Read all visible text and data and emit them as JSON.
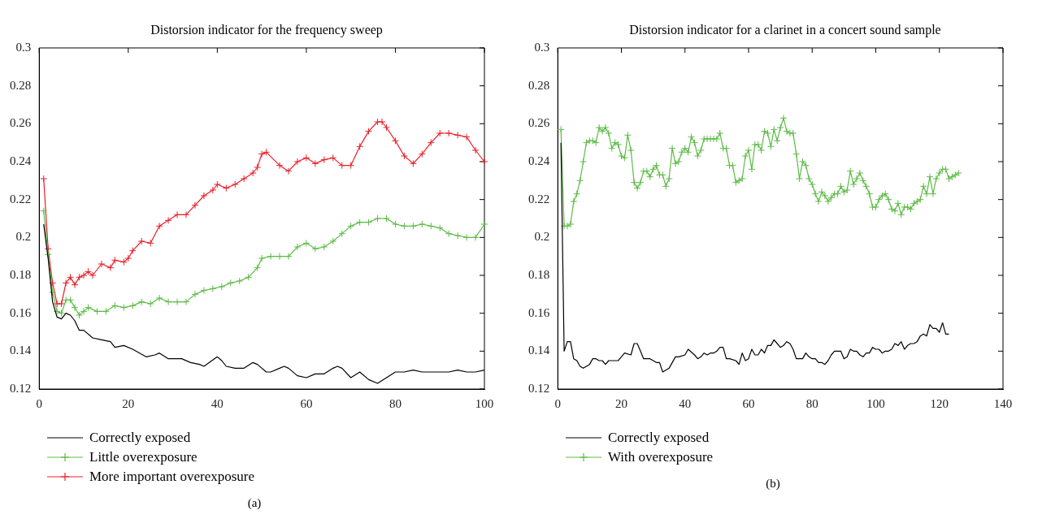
{
  "chart_data": [
    {
      "type": "line",
      "title": "Distorsion indicator for the frequency sweep",
      "xlim": [
        0,
        100
      ],
      "ylim": [
        0.12,
        0.3
      ],
      "xticks": [
        0,
        20,
        40,
        60,
        80,
        100
      ],
      "yticks": [
        0.12,
        0.14,
        0.16,
        0.18,
        0.2,
        0.22,
        0.24,
        0.26,
        0.28,
        0.3
      ],
      "legend": "bottom",
      "annotations": [
        "(a)"
      ],
      "series": [
        {
          "name": "Correctly exposed",
          "color": "#000000",
          "marker": "none",
          "x": [
            1,
            2,
            3,
            4,
            5,
            6,
            7,
            8,
            9,
            10,
            12,
            14,
            16,
            17,
            19,
            21,
            24,
            26,
            27,
            29,
            32,
            34,
            36,
            37,
            40,
            41,
            42,
            44,
            46,
            48,
            49,
            51,
            52,
            54,
            55,
            56,
            58,
            60,
            62,
            64,
            66,
            67,
            68,
            70,
            72,
            74,
            76,
            78,
            80,
            82,
            84,
            86,
            88,
            90,
            92,
            94,
            96,
            98,
            100
          ],
          "values": [
            0.207,
            0.189,
            0.166,
            0.158,
            0.157,
            0.16,
            0.159,
            0.156,
            0.151,
            0.151,
            0.147,
            0.146,
            0.145,
            0.142,
            0.143,
            0.141,
            0.137,
            0.138,
            0.139,
            0.136,
            0.136,
            0.134,
            0.133,
            0.132,
            0.137,
            0.135,
            0.132,
            0.131,
            0.131,
            0.134,
            0.133,
            0.129,
            0.129,
            0.131,
            0.132,
            0.131,
            0.127,
            0.126,
            0.128,
            0.128,
            0.131,
            0.132,
            0.131,
            0.126,
            0.129,
            0.125,
            0.123,
            0.126,
            0.129,
            0.129,
            0.13,
            0.129,
            0.129,
            0.129,
            0.129,
            0.13,
            0.129,
            0.129,
            0.13
          ]
        },
        {
          "name": "Little overexposure",
          "color": "#5dbb46",
          "marker": "cross",
          "x": [
            1,
            2,
            3,
            4,
            5,
            6,
            7,
            8,
            9,
            10,
            11,
            13,
            15,
            17,
            19,
            21,
            23,
            25,
            27,
            29,
            31,
            33,
            35,
            37,
            39,
            41,
            43,
            45,
            47,
            49,
            50,
            52,
            54,
            56,
            58,
            60,
            62,
            64,
            66,
            68,
            70,
            72,
            74,
            76,
            78,
            80,
            82,
            84,
            86,
            88,
            90,
            92,
            94,
            96,
            98,
            100
          ],
          "values": [
            0.214,
            0.191,
            0.171,
            0.161,
            0.16,
            0.167,
            0.167,
            0.163,
            0.159,
            0.161,
            0.163,
            0.161,
            0.161,
            0.164,
            0.163,
            0.164,
            0.166,
            0.165,
            0.168,
            0.166,
            0.166,
            0.166,
            0.17,
            0.172,
            0.173,
            0.174,
            0.176,
            0.177,
            0.179,
            0.184,
            0.189,
            0.19,
            0.19,
            0.19,
            0.195,
            0.197,
            0.194,
            0.195,
            0.198,
            0.202,
            0.206,
            0.208,
            0.208,
            0.21,
            0.21,
            0.207,
            0.206,
            0.206,
            0.207,
            0.206,
            0.205,
            0.202,
            0.201,
            0.2,
            0.2,
            0.207
          ]
        },
        {
          "name": "More important overexposure",
          "color": "#e8202a",
          "marker": "cross",
          "x": [
            1,
            2,
            3,
            4,
            5,
            6,
            7,
            8,
            9,
            10,
            11,
            12,
            14,
            16,
            17,
            19,
            20,
            21,
            23,
            25,
            27,
            29,
            31,
            33,
            35,
            37,
            39,
            40,
            42,
            44,
            46,
            48,
            49,
            50,
            51,
            54,
            56,
            58,
            60,
            62,
            64,
            66,
            68,
            70,
            72,
            74,
            76,
            77,
            78,
            80,
            82,
            84,
            86,
            88,
            90,
            92,
            94,
            96,
            98,
            100
          ],
          "values": [
            0.231,
            0.194,
            0.176,
            0.165,
            0.165,
            0.176,
            0.179,
            0.175,
            0.179,
            0.18,
            0.182,
            0.18,
            0.186,
            0.184,
            0.188,
            0.187,
            0.189,
            0.193,
            0.198,
            0.197,
            0.206,
            0.209,
            0.212,
            0.212,
            0.217,
            0.222,
            0.225,
            0.228,
            0.226,
            0.228,
            0.231,
            0.234,
            0.237,
            0.244,
            0.245,
            0.238,
            0.235,
            0.24,
            0.242,
            0.239,
            0.241,
            0.242,
            0.238,
            0.238,
            0.248,
            0.256,
            0.261,
            0.261,
            0.258,
            0.251,
            0.243,
            0.239,
            0.244,
            0.25,
            0.255,
            0.255,
            0.254,
            0.253,
            0.246,
            0.24
          ]
        }
      ]
    },
    {
      "type": "line",
      "title": "Distorsion indicator for a clarinet in a concert sound sample",
      "xlim": [
        0,
        140
      ],
      "ylim": [
        0.12,
        0.3
      ],
      "xticks": [
        0,
        20,
        40,
        60,
        80,
        100,
        120,
        140
      ],
      "yticks": [
        0.12,
        0.14,
        0.16,
        0.18,
        0.2,
        0.22,
        0.24,
        0.26,
        0.28,
        0.3
      ],
      "legend": "bottom",
      "annotations": [
        "(b)"
      ],
      "series": [
        {
          "name": "Correctly exposed",
          "color": "#000000",
          "marker": "none",
          "x": [
            1,
            2,
            3,
            4,
            5,
            6,
            7,
            8,
            10,
            11,
            12,
            13,
            14,
            15,
            16,
            18,
            19,
            21,
            23,
            24,
            25,
            26,
            27,
            28,
            29,
            31,
            32,
            33,
            35,
            37,
            38,
            40,
            41,
            43,
            44,
            45,
            46,
            47,
            48,
            49,
            50,
            51,
            52,
            53,
            54,
            56,
            57,
            58,
            59,
            60,
            61,
            62,
            63,
            64,
            65,
            66,
            67,
            68,
            69,
            70,
            71,
            72,
            73,
            74,
            75,
            76,
            77,
            78,
            79,
            80,
            81,
            82,
            83,
            84,
            85,
            86,
            87,
            89,
            90,
            91,
            92,
            93,
            94,
            95,
            96,
            97,
            98,
            99,
            100,
            101,
            102,
            103,
            104,
            105,
            106,
            107,
            108,
            109,
            110,
            111,
            112,
            113,
            114,
            115,
            116,
            117,
            118,
            119,
            120,
            121,
            122,
            123
          ],
          "values": [
            0.25,
            0.14,
            0.145,
            0.145,
            0.136,
            0.135,
            0.132,
            0.131,
            0.133,
            0.136,
            0.136,
            0.135,
            0.135,
            0.133,
            0.135,
            0.135,
            0.135,
            0.139,
            0.138,
            0.144,
            0.144,
            0.14,
            0.136,
            0.136,
            0.136,
            0.134,
            0.134,
            0.129,
            0.131,
            0.137,
            0.137,
            0.138,
            0.141,
            0.138,
            0.136,
            0.137,
            0.139,
            0.138,
            0.139,
            0.139,
            0.14,
            0.142,
            0.142,
            0.136,
            0.136,
            0.135,
            0.133,
            0.139,
            0.135,
            0.136,
            0.141,
            0.138,
            0.138,
            0.141,
            0.139,
            0.143,
            0.143,
            0.146,
            0.144,
            0.142,
            0.143,
            0.145,
            0.144,
            0.141,
            0.136,
            0.136,
            0.136,
            0.139,
            0.137,
            0.136,
            0.136,
            0.134,
            0.134,
            0.133,
            0.135,
            0.138,
            0.14,
            0.14,
            0.136,
            0.137,
            0.141,
            0.14,
            0.14,
            0.138,
            0.137,
            0.139,
            0.139,
            0.142,
            0.141,
            0.141,
            0.139,
            0.14,
            0.14,
            0.141,
            0.144,
            0.143,
            0.145,
            0.141,
            0.143,
            0.144,
            0.144,
            0.145,
            0.148,
            0.149,
            0.148,
            0.154,
            0.152,
            0.152,
            0.15,
            0.155,
            0.149,
            0.149
          ]
        },
        {
          "name": "With overexposure",
          "color": "#5dbb46",
          "marker": "cross",
          "x": [
            1,
            2,
            3,
            4,
            5,
            6,
            7,
            8,
            9,
            10,
            11,
            12,
            13,
            14,
            15,
            16,
            17,
            18,
            19,
            20,
            21,
            22,
            23,
            24,
            25,
            26,
            27,
            28,
            29,
            30,
            31,
            32,
            33,
            34,
            35,
            36,
            37,
            38,
            39,
            40,
            41,
            42,
            43,
            44,
            45,
            46,
            47,
            48,
            49,
            50,
            51,
            52,
            53,
            54,
            55,
            56,
            57,
            58,
            59,
            60,
            61,
            62,
            63,
            64,
            65,
            66,
            67,
            68,
            69,
            70,
            71,
            72,
            73,
            74,
            75,
            76,
            77,
            78,
            79,
            80,
            81,
            82,
            83,
            84,
            85,
            86,
            87,
            88,
            89,
            90,
            91,
            92,
            93,
            94,
            95,
            96,
            97,
            98,
            99,
            100,
            101,
            102,
            103,
            104,
            105,
            106,
            107,
            108,
            109,
            110,
            111,
            112,
            113,
            114,
            115,
            116,
            117,
            118,
            119,
            120,
            121,
            122,
            123,
            124,
            125,
            126
          ],
          "values": [
            0.257,
            0.206,
            0.206,
            0.207,
            0.219,
            0.223,
            0.23,
            0.24,
            0.25,
            0.251,
            0.251,
            0.25,
            0.258,
            0.256,
            0.258,
            0.255,
            0.247,
            0.25,
            0.249,
            0.243,
            0.242,
            0.254,
            0.246,
            0.229,
            0.226,
            0.229,
            0.235,
            0.235,
            0.232,
            0.236,
            0.238,
            0.233,
            0.233,
            0.227,
            0.231,
            0.247,
            0.239,
            0.24,
            0.245,
            0.247,
            0.245,
            0.253,
            0.25,
            0.243,
            0.246,
            0.252,
            0.252,
            0.252,
            0.252,
            0.252,
            0.255,
            0.247,
            0.247,
            0.238,
            0.238,
            0.229,
            0.23,
            0.231,
            0.243,
            0.246,
            0.236,
            0.249,
            0.249,
            0.246,
            0.256,
            0.255,
            0.248,
            0.257,
            0.251,
            0.258,
            0.263,
            0.256,
            0.255,
            0.255,
            0.244,
            0.231,
            0.24,
            0.238,
            0.231,
            0.228,
            0.223,
            0.219,
            0.224,
            0.222,
            0.219,
            0.221,
            0.223,
            0.223,
            0.227,
            0.224,
            0.225,
            0.235,
            0.228,
            0.231,
            0.234,
            0.23,
            0.227,
            0.223,
            0.216,
            0.216,
            0.22,
            0.222,
            0.223,
            0.22,
            0.215,
            0.214,
            0.218,
            0.212,
            0.216,
            0.216,
            0.215,
            0.218,
            0.219,
            0.22,
            0.227,
            0.223,
            0.232,
            0.223,
            0.231,
            0.234,
            0.236,
            0.236,
            0.231,
            0.232,
            0.233,
            0.234
          ]
        }
      ]
    }
  ]
}
